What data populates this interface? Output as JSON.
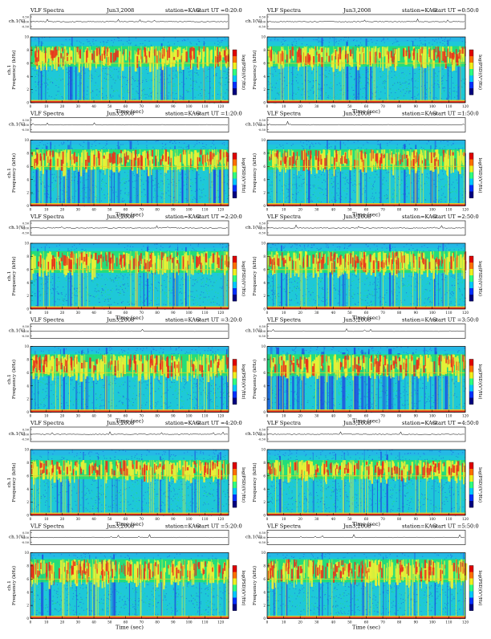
{
  "header": {
    "title": "VLF Spectra",
    "date": "Jun3,2008",
    "station": "station=KAG",
    "start_prefix": "start  UT ="
  },
  "colors": {
    "background": "#1ec8d8",
    "low": "#1f3cdf",
    "mid": "#26e06a",
    "high": "#e8f036",
    "peak": "#e7301c",
    "hum": "#f0d020",
    "colorbar": [
      "#000080",
      "#0030ff",
      "#00c8ff",
      "#30ff80",
      "#f0f020",
      "#ff7000",
      "#e00000"
    ]
  },
  "labels": {
    "ch_axis": "ch.1(V)",
    "freq_axis_left": "ch.1\nFrequency (kHz)",
    "freq_axis_right": "Frequency (kHz)",
    "time_axis": "Time (sec)",
    "colorbar_label": "log(PSD)(V²/Hz)"
  },
  "chart_data": [
    {
      "type": "heatmap",
      "start": "0:20:0",
      "x": {
        "range": [
          0,
          125
        ],
        "ticks": [
          0,
          10,
          20,
          30,
          40,
          50,
          60,
          70,
          80,
          90,
          100,
          110,
          120
        ]
      },
      "y": {
        "range": [
          0,
          10
        ],
        "ticks": [
          0,
          2,
          4,
          6,
          8,
          10
        ]
      },
      "ch_range": [
        -0.5,
        0.5
      ],
      "ch_ticks": [
        "0.50",
        "0.00",
        "-0.50"
      ],
      "band_khz": [
        5.5,
        8.6
      ],
      "top_khz": 9.3,
      "dark": 0.08,
      "seed": 11
    },
    {
      "type": "heatmap",
      "start": "0:50:0",
      "x": {
        "range": [
          0,
          120
        ],
        "ticks": [
          0,
          10,
          20,
          30,
          40,
          50,
          60,
          70,
          80,
          90,
          100,
          110,
          120
        ]
      },
      "y": {
        "range": [
          0,
          10
        ],
        "ticks": [
          0,
          2,
          4,
          6,
          8,
          10
        ]
      },
      "ch_range": [
        -0.5,
        0.5
      ],
      "ch_ticks": [
        "0.50",
        "0.00",
        "-0.50"
      ],
      "band_khz": [
        5.5,
        8.6
      ],
      "top_khz": 9.3,
      "dark": 0.08,
      "seed": 23
    },
    {
      "type": "heatmap",
      "start": "1:20:0",
      "x": {
        "range": [
          0,
          125
        ],
        "ticks": [
          0,
          10,
          20,
          30,
          40,
          50,
          60,
          70,
          80,
          90,
          100,
          110,
          120
        ]
      },
      "y": {
        "range": [
          0,
          10
        ],
        "ticks": [
          0,
          2,
          4,
          6,
          8,
          10
        ]
      },
      "ch_range": [
        -0.5,
        0.5
      ],
      "ch_ticks": [
        "0.50",
        "0.00",
        "-0.50"
      ],
      "band_khz": [
        5.5,
        8.6
      ],
      "top_khz": 9.3,
      "dark": 0.35,
      "seed": 37
    },
    {
      "type": "heatmap",
      "start": "1:50:0",
      "x": {
        "range": [
          0,
          120
        ],
        "ticks": [
          0,
          10,
          20,
          30,
          40,
          50,
          60,
          70,
          80,
          90,
          100,
          110,
          120
        ]
      },
      "y": {
        "range": [
          0,
          10
        ],
        "ticks": [
          0,
          2,
          4,
          6,
          8,
          10
        ]
      },
      "ch_range": [
        -0.5,
        0.5
      ],
      "ch_ticks": [
        "0.50",
        "0.00",
        "-0.50"
      ],
      "band_khz": [
        5.5,
        8.6
      ],
      "top_khz": 9.3,
      "dark": 0.12,
      "seed": 41
    },
    {
      "type": "heatmap",
      "start": "2:20:0",
      "x": {
        "range": [
          0,
          125
        ],
        "ticks": [
          0,
          10,
          20,
          30,
          40,
          50,
          60,
          70,
          80,
          90,
          100,
          110,
          120
        ]
      },
      "y": {
        "range": [
          0,
          10
        ],
        "ticks": [
          0,
          2,
          4,
          6,
          8,
          10
        ]
      },
      "ch_range": [
        -0.5,
        0.5
      ],
      "ch_ticks": [
        "0.50",
        "0.00",
        "-0.50"
      ],
      "band_khz": [
        5.5,
        8.8
      ],
      "top_khz": 9.3,
      "dark": 0.1,
      "seed": 53
    },
    {
      "type": "heatmap",
      "start": "2:50:0",
      "x": {
        "range": [
          0,
          120
        ],
        "ticks": [
          0,
          10,
          20,
          30,
          40,
          50,
          60,
          70,
          80,
          90,
          100,
          110,
          120
        ]
      },
      "y": {
        "range": [
          0,
          10
        ],
        "ticks": [
          0,
          2,
          4,
          6,
          8,
          10
        ]
      },
      "ch_range": [
        -0.5,
        0.5
      ],
      "ch_ticks": [
        "0.50",
        "0.00",
        "-0.50"
      ],
      "band_khz": [
        5.5,
        8.8
      ],
      "top_khz": 9.3,
      "dark": 0.08,
      "seed": 67
    },
    {
      "type": "heatmap",
      "start": "3:20:0",
      "x": {
        "range": [
          0,
          125
        ],
        "ticks": [
          0,
          10,
          20,
          30,
          40,
          50,
          60,
          70,
          80,
          90,
          100,
          110,
          120
        ]
      },
      "y": {
        "range": [
          0,
          10
        ],
        "ticks": [
          0,
          2,
          4,
          6,
          8,
          10
        ]
      },
      "ch_range": [
        -0.5,
        0.5
      ],
      "ch_ticks": [
        "0.50",
        "0.00",
        "-0.50"
      ],
      "band_khz": [
        5.5,
        8.8
      ],
      "top_khz": 9.3,
      "dark": 0.1,
      "seed": 79
    },
    {
      "type": "heatmap",
      "start": "3:50:0",
      "x": {
        "range": [
          0,
          120
        ],
        "ticks": [
          0,
          10,
          20,
          30,
          40,
          50,
          60,
          70,
          80,
          90,
          100,
          110,
          120
        ]
      },
      "y": {
        "range": [
          0,
          10
        ],
        "ticks": [
          0,
          2,
          4,
          6,
          8,
          10
        ]
      },
      "ch_range": [
        -0.5,
        0.5
      ],
      "ch_ticks": [
        "0.50",
        "0.00",
        "-0.50"
      ],
      "band_khz": [
        5.5,
        8.8
      ],
      "top_khz": 9.3,
      "dark": 0.45,
      "seed": 83
    },
    {
      "type": "heatmap",
      "start": "4:20:0",
      "x": {
        "range": [
          0,
          125
        ],
        "ticks": [
          0,
          10,
          20,
          30,
          40,
          50,
          60,
          70,
          80,
          90,
          100,
          110,
          120
        ]
      },
      "y": {
        "range": [
          0,
          10
        ],
        "ticks": [
          0,
          2,
          4,
          6,
          8,
          10
        ]
      },
      "ch_range": [
        -0.5,
        0.5
      ],
      "ch_ticks": [
        "0.50",
        "0.00",
        "-0.50"
      ],
      "band_khz": [
        5.5,
        8.4
      ],
      "top_khz": 9.1,
      "dark": 0.06,
      "seed": 97
    },
    {
      "type": "heatmap",
      "start": "4:50:0",
      "x": {
        "range": [
          0,
          120
        ],
        "ticks": [
          0,
          10,
          20,
          30,
          40,
          50,
          60,
          70,
          80,
          90,
          100,
          110,
          120
        ]
      },
      "y": {
        "range": [
          0,
          10
        ],
        "ticks": [
          0,
          2,
          4,
          6,
          8,
          10
        ]
      },
      "ch_range": [
        -0.5,
        0.5
      ],
      "ch_ticks": [
        "0.50",
        "0.00",
        "-0.50"
      ],
      "band_khz": [
        5.5,
        8.4
      ],
      "top_khz": 9.1,
      "dark": 0.06,
      "seed": 101
    },
    {
      "type": "heatmap",
      "start": "5:20:0",
      "x": {
        "range": [
          0,
          125
        ],
        "ticks": [
          0,
          10,
          20,
          30,
          40,
          50,
          60,
          70,
          80,
          90,
          100,
          110,
          120
        ]
      },
      "y": {
        "range": [
          0,
          10
        ],
        "ticks": [
          0,
          2,
          4,
          6,
          8,
          10
        ]
      },
      "ch_range": [
        -0.5,
        0.5
      ],
      "ch_ticks": [
        "0.50",
        "0.00",
        "-0.50"
      ],
      "band_khz": [
        5.5,
        9.0
      ],
      "top_khz": 9.3,
      "dark": 0.06,
      "seed": 113
    },
    {
      "type": "heatmap",
      "start": "5:50:0",
      "x": {
        "range": [
          0,
          120
        ],
        "ticks": [
          0,
          10,
          20,
          30,
          40,
          50,
          60,
          70,
          80,
          90,
          100,
          110,
          120
        ]
      },
      "y": {
        "range": [
          0,
          10
        ],
        "ticks": [
          0,
          2,
          4,
          6,
          8,
          10
        ]
      },
      "ch_range": [
        -0.5,
        0.5
      ],
      "ch_ticks": [
        "0.50",
        "0.00",
        "-0.50"
      ],
      "band_khz": [
        5.5,
        9.0
      ],
      "top_khz": 9.3,
      "dark": 0.06,
      "seed": 127
    }
  ]
}
